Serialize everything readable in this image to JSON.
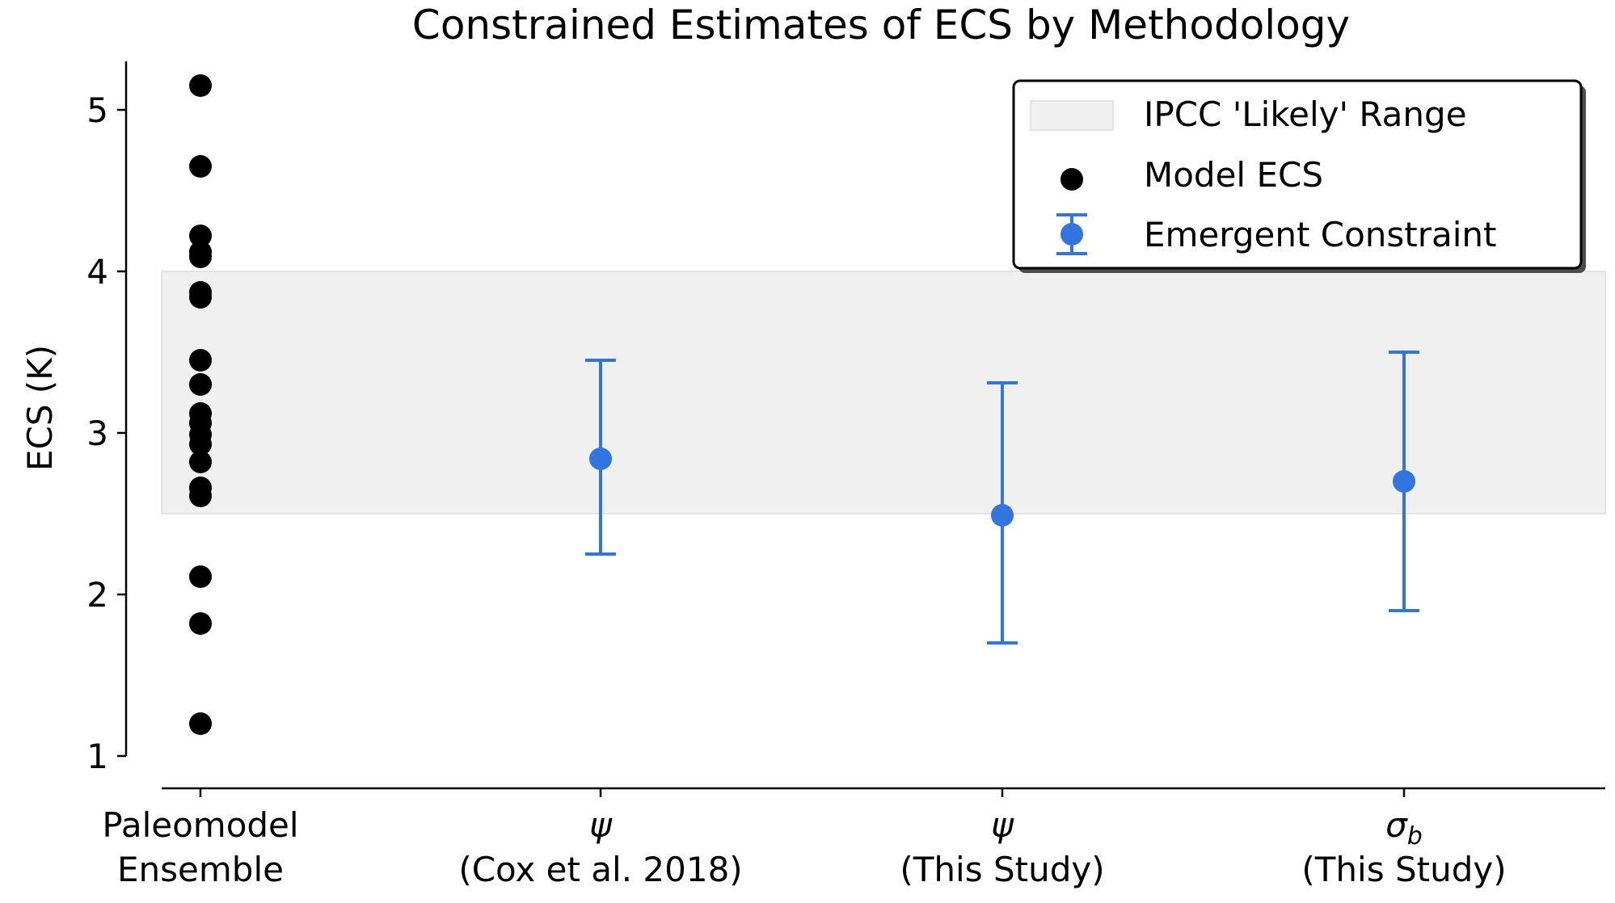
{
  "chart_data": {
    "type": "scatter",
    "title": "Constrained Estimates of ECS by Methodology",
    "ylabel": "ECS (K)",
    "xlabel": "",
    "ylim": [
      0.8,
      5.3
    ],
    "yticks": [
      1,
      2,
      3,
      4,
      5
    ],
    "grid": false,
    "legend_position": "top-right",
    "categories": [
      {
        "main": "Paleomodel",
        "sub": "Ensemble"
      },
      {
        "main": "ψ",
        "sub": "(Cox et al. 2018)"
      },
      {
        "main": "ψ",
        "sub": "(This Study)"
      },
      {
        "main": "σ",
        "main_subscript": "b",
        "sub": "(This Study)"
      }
    ],
    "likely_range": {
      "label": "IPCC 'Likely' Range",
      "low": 2.5,
      "high": 4.0,
      "color": "#f0f0f0"
    },
    "model_ecs": {
      "label": "Model ECS",
      "category_index": 0,
      "color": "#000000",
      "values": [
        5.15,
        4.65,
        4.22,
        4.12,
        4.09,
        3.87,
        3.84,
        3.45,
        3.3,
        3.12,
        3.06,
        2.99,
        2.93,
        2.82,
        2.66,
        2.61,
        2.11,
        1.82,
        1.2
      ]
    },
    "emergent_constraint": {
      "label": "Emergent Constraint",
      "color": "#3274e0",
      "points": [
        {
          "category_index": 1,
          "y": 2.84,
          "low": 2.25,
          "high": 3.45
        },
        {
          "category_index": 2,
          "y": 2.49,
          "low": 1.7,
          "high": 3.31
        },
        {
          "category_index": 3,
          "y": 2.7,
          "low": 1.9,
          "high": 3.5
        }
      ]
    }
  }
}
